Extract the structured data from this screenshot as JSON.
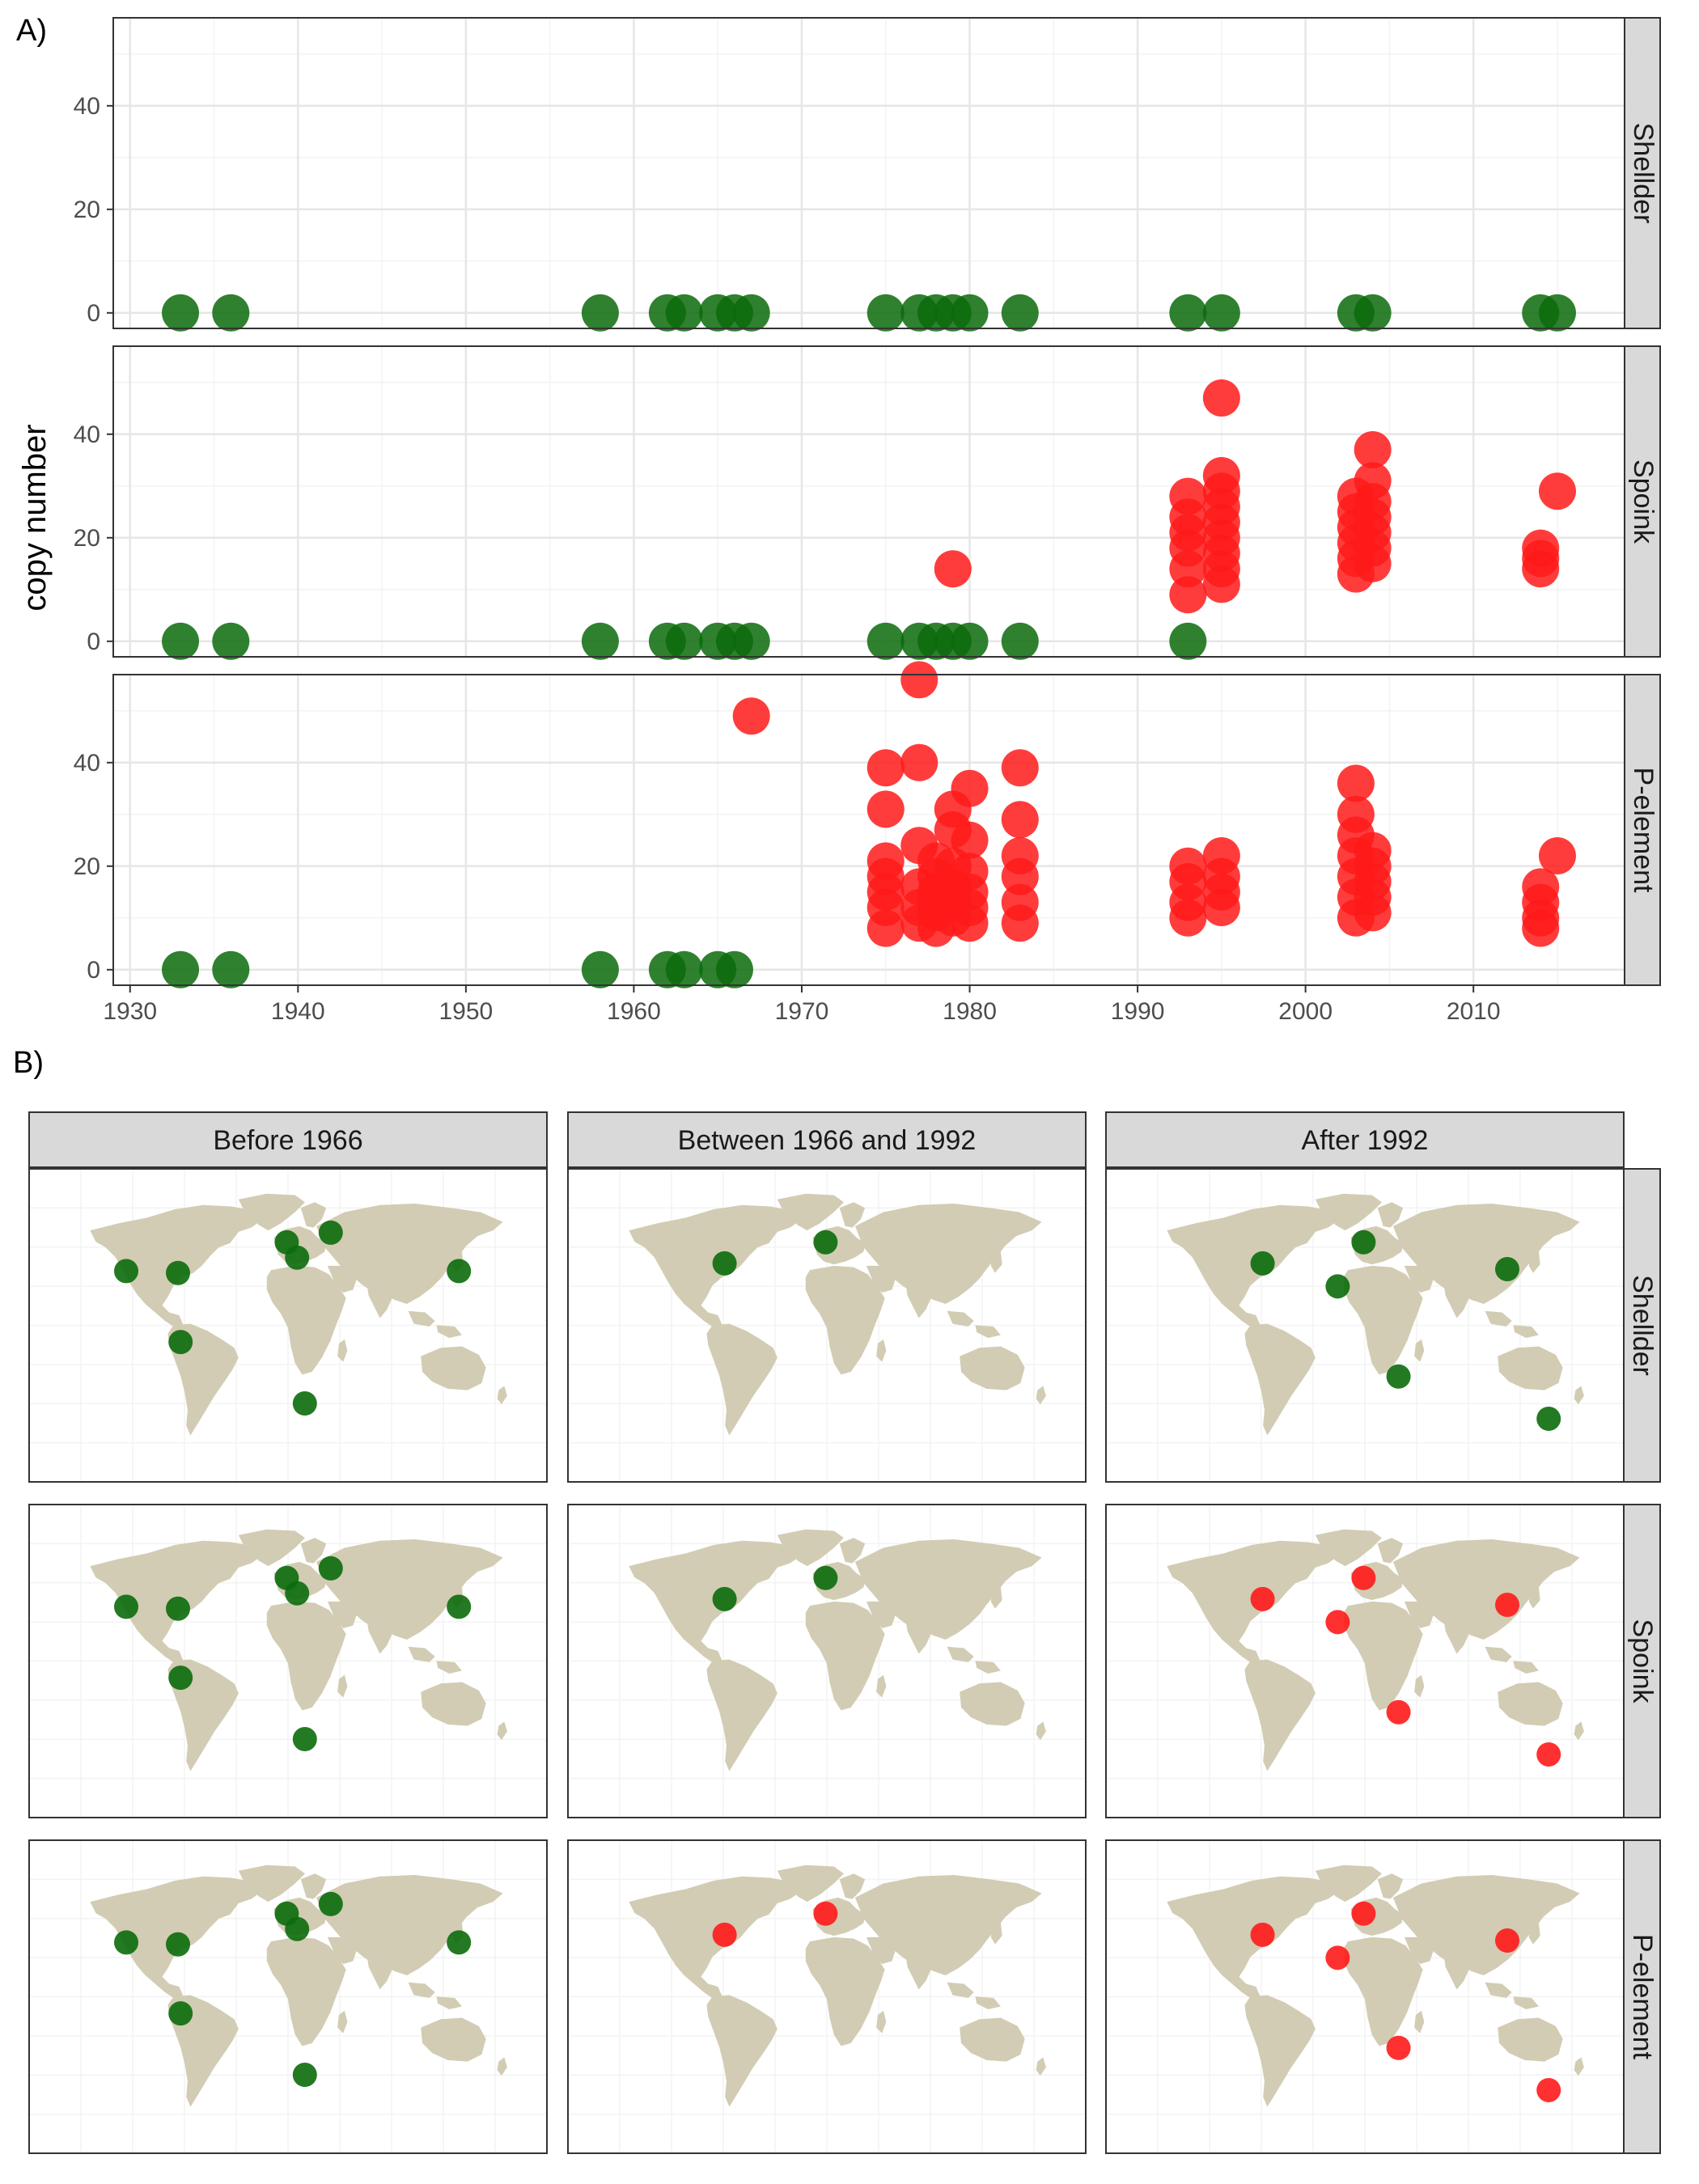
{
  "figure": {
    "panel_a_tag": "A)",
    "panel_b_tag": "B)"
  },
  "colors": {
    "absent": "#0b6b0b",
    "present": "#ff1a1a",
    "land": "#d2ccb4",
    "strip": "#d9d9d9",
    "grid_major": "#e6e6e6",
    "grid_minor": "#f3f3f3"
  },
  "chart_data": [
    {
      "type": "scatter",
      "title": "",
      "xlabel": "",
      "ylabel": "copy number",
      "xlim": [
        1929,
        2019
      ],
      "ylim": [
        -3,
        57
      ],
      "x_ticks": [
        "1930",
        "1940",
        "1950",
        "1960",
        "1970",
        "1980",
        "1990",
        "2000",
        "2010"
      ],
      "y_ticks": [
        "0",
        "20",
        "40"
      ],
      "facets": [
        "Shellder",
        "Spoink",
        "P-element"
      ],
      "series": [
        {
          "facet": "Shellder",
          "points": [
            [
              1933,
              0,
              0
            ],
            [
              1936,
              0,
              0
            ],
            [
              1958,
              0,
              0
            ],
            [
              1962,
              0,
              0
            ],
            [
              1963,
              0,
              0
            ],
            [
              1965,
              0,
              0
            ],
            [
              1966,
              0,
              0
            ],
            [
              1967,
              0,
              0
            ],
            [
              1975,
              0,
              0
            ],
            [
              1977,
              0,
              0
            ],
            [
              1978,
              0,
              0
            ],
            [
              1979,
              0,
              0
            ],
            [
              1980,
              0,
              0
            ],
            [
              1983,
              0,
              0
            ],
            [
              1993,
              0,
              0
            ],
            [
              1995,
              0,
              0
            ],
            [
              2003,
              0,
              0
            ],
            [
              2004,
              0,
              0
            ],
            [
              2014,
              0,
              0
            ],
            [
              2015,
              0,
              0
            ]
          ]
        },
        {
          "facet": "Spoink",
          "points": [
            [
              1933,
              0,
              0
            ],
            [
              1936,
              0,
              0
            ],
            [
              1958,
              0,
              0
            ],
            [
              1962,
              0,
              0
            ],
            [
              1963,
              0,
              0
            ],
            [
              1965,
              0,
              0
            ],
            [
              1966,
              0,
              0
            ],
            [
              1967,
              0,
              0
            ],
            [
              1975,
              0,
              0
            ],
            [
              1977,
              0,
              0
            ],
            [
              1978,
              0,
              0
            ],
            [
              1979,
              0,
              0
            ],
            [
              1980,
              0,
              0
            ],
            [
              1983,
              0,
              0
            ],
            [
              1979,
              14,
              1
            ],
            [
              1993,
              0,
              0
            ],
            [
              1993,
              9,
              1
            ],
            [
              1993,
              14,
              1
            ],
            [
              1993,
              18,
              1
            ],
            [
              1993,
              21,
              1
            ],
            [
              1993,
              24,
              1
            ],
            [
              1993,
              28,
              1
            ],
            [
              1995,
              47,
              1
            ],
            [
              1995,
              32,
              1
            ],
            [
              1995,
              29,
              1
            ],
            [
              1995,
              26,
              1
            ],
            [
              1995,
              23,
              1
            ],
            [
              1995,
              20,
              1
            ],
            [
              1995,
              17,
              1
            ],
            [
              1995,
              14,
              1
            ],
            [
              1995,
              11,
              1
            ],
            [
              2003,
              13,
              1
            ],
            [
              2003,
              16,
              1
            ],
            [
              2003,
              19,
              1
            ],
            [
              2003,
              22,
              1
            ],
            [
              2003,
              25,
              1
            ],
            [
              2003,
              28,
              1
            ],
            [
              2004,
              37,
              1
            ],
            [
              2004,
              31,
              1
            ],
            [
              2004,
              27,
              1
            ],
            [
              2004,
              24,
              1
            ],
            [
              2004,
              21,
              1
            ],
            [
              2004,
              18,
              1
            ],
            [
              2004,
              15,
              1
            ],
            [
              2014,
              14,
              1
            ],
            [
              2014,
              16,
              1
            ],
            [
              2014,
              18,
              1
            ],
            [
              2015,
              29,
              1
            ]
          ]
        },
        {
          "facet": "P-element",
          "points": [
            [
              1933,
              0,
              0
            ],
            [
              1936,
              0,
              0
            ],
            [
              1958,
              0,
              0
            ],
            [
              1962,
              0,
              0
            ],
            [
              1963,
              0,
              0
            ],
            [
              1965,
              0,
              0
            ],
            [
              1966,
              0,
              0
            ],
            [
              1967,
              49,
              1
            ],
            [
              1975,
              8,
              1
            ],
            [
              1975,
              12,
              1
            ],
            [
              1975,
              15,
              1
            ],
            [
              1975,
              18,
              1
            ],
            [
              1975,
              21,
              1
            ],
            [
              1975,
              31,
              1
            ],
            [
              1975,
              39,
              1
            ],
            [
              1977,
              56,
              1
            ],
            [
              1977,
              40,
              1
            ],
            [
              1977,
              24,
              1
            ],
            [
              1977,
              16,
              1
            ],
            [
              1977,
              12,
              1
            ],
            [
              1977,
              9,
              1
            ],
            [
              1978,
              8,
              1
            ],
            [
              1978,
              11,
              1
            ],
            [
              1978,
              13,
              1
            ],
            [
              1978,
              15,
              1
            ],
            [
              1978,
              18,
              1
            ],
            [
              1978,
              21,
              1
            ],
            [
              1979,
              10,
              1
            ],
            [
              1979,
              13,
              1
            ],
            [
              1979,
              16,
              1
            ],
            [
              1979,
              20,
              1
            ],
            [
              1979,
              27,
              1
            ],
            [
              1979,
              31,
              1
            ],
            [
              1980,
              9,
              1
            ],
            [
              1980,
              12,
              1
            ],
            [
              1980,
              15,
              1
            ],
            [
              1980,
              19,
              1
            ],
            [
              1980,
              25,
              1
            ],
            [
              1980,
              35,
              1
            ],
            [
              1983,
              9,
              1
            ],
            [
              1983,
              13,
              1
            ],
            [
              1983,
              18,
              1
            ],
            [
              1983,
              22,
              1
            ],
            [
              1983,
              29,
              1
            ],
            [
              1983,
              39,
              1
            ],
            [
              1993,
              10,
              1
            ],
            [
              1993,
              13,
              1
            ],
            [
              1993,
              17,
              1
            ],
            [
              1993,
              20,
              1
            ],
            [
              1995,
              12,
              1
            ],
            [
              1995,
              15,
              1
            ],
            [
              1995,
              18,
              1
            ],
            [
              1995,
              22,
              1
            ],
            [
              2003,
              10,
              1
            ],
            [
              2003,
              14,
              1
            ],
            [
              2003,
              18,
              1
            ],
            [
              2003,
              22,
              1
            ],
            [
              2003,
              26,
              1
            ],
            [
              2003,
              30,
              1
            ],
            [
              2003,
              36,
              1
            ],
            [
              2004,
              11,
              1
            ],
            [
              2004,
              14,
              1
            ],
            [
              2004,
              17,
              1
            ],
            [
              2004,
              20,
              1
            ],
            [
              2004,
              23,
              1
            ],
            [
              2014,
              8,
              1
            ],
            [
              2014,
              10,
              1
            ],
            [
              2014,
              13,
              1
            ],
            [
              2014,
              16,
              1
            ],
            [
              2015,
              22,
              1
            ]
          ]
        }
      ]
    },
    {
      "type": "scatter",
      "title": "",
      "map": true,
      "columns": [
        "Before 1966",
        "Between 1966 and 1992",
        "After 1992"
      ],
      "rows": [
        "Shellder",
        "Spoink",
        "P-element"
      ],
      "locations_lon_lat": {
        "california": [
          -120,
          36
        ],
        "north_carolina": [
          -80,
          35
        ],
        "ecuador": [
          -78,
          -1
        ],
        "spain": [
          -16,
          28
        ],
        "netherlands": [
          4,
          51
        ],
        "russia": [
          38,
          56
        ],
        "italy": [
          12,
          43
        ],
        "south_africa": [
          18,
          -33
        ],
        "japan": [
          137,
          36
        ],
        "zimbabwe": [
          31,
          -19
        ],
        "china": [
          115,
          37
        ],
        "tasmania": [
          147,
          -41
        ],
        "usa_east": [
          -74,
          40
        ]
      },
      "cells": [
        [
          {
            "points": [
              [
                "california",
                0
              ],
              [
                "north_carolina",
                0
              ],
              [
                "ecuador",
                0
              ],
              [
                "netherlands",
                0
              ],
              [
                "russia",
                0
              ],
              [
                "italy",
                0
              ],
              [
                "south_africa",
                0
              ],
              [
                "japan",
                0
              ]
            ]
          },
          {
            "points": [
              [
                "usa_east",
                0
              ],
              [
                "netherlands",
                0
              ]
            ]
          },
          {
            "points": [
              [
                "usa_east",
                0
              ],
              [
                "spain",
                0
              ],
              [
                "netherlands",
                0
              ],
              [
                "zimbabwe",
                0
              ],
              [
                "china",
                0
              ],
              [
                "tasmania",
                0
              ]
            ]
          }
        ],
        [
          {
            "points": [
              [
                "california",
                0
              ],
              [
                "north_carolina",
                0
              ],
              [
                "ecuador",
                0
              ],
              [
                "netherlands",
                0
              ],
              [
                "russia",
                0
              ],
              [
                "italy",
                0
              ],
              [
                "south_africa",
                0
              ],
              [
                "japan",
                0
              ]
            ]
          },
          {
            "points": [
              [
                "usa_east",
                0
              ],
              [
                "netherlands",
                0
              ]
            ]
          },
          {
            "points": [
              [
                "usa_east",
                1
              ],
              [
                "spain",
                1
              ],
              [
                "netherlands",
                1
              ],
              [
                "zimbabwe",
                1
              ],
              [
                "china",
                1
              ],
              [
                "tasmania",
                1
              ]
            ]
          }
        ],
        [
          {
            "points": [
              [
                "california",
                0
              ],
              [
                "north_carolina",
                0
              ],
              [
                "ecuador",
                0
              ],
              [
                "netherlands",
                0
              ],
              [
                "russia",
                0
              ],
              [
                "italy",
                0
              ],
              [
                "south_africa",
                0
              ],
              [
                "japan",
                0
              ]
            ]
          },
          {
            "points": [
              [
                "usa_east",
                1
              ],
              [
                "netherlands",
                1
              ]
            ]
          },
          {
            "points": [
              [
                "usa_east",
                1
              ],
              [
                "spain",
                1
              ],
              [
                "netherlands",
                1
              ],
              [
                "zimbabwe",
                1
              ],
              [
                "china",
                1
              ],
              [
                "tasmania",
                1
              ]
            ]
          }
        ]
      ]
    }
  ]
}
